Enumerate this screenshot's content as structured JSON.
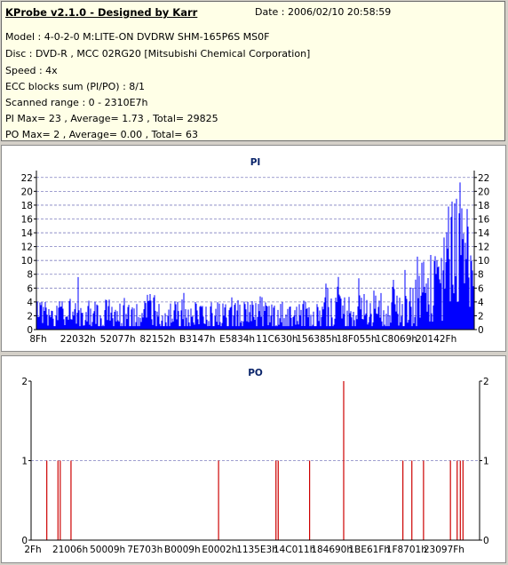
{
  "header": {
    "title": "KProbe v2.1.0 - Designed by Karr",
    "date": "Date : 2006/02/10 20:58:59",
    "lines": [
      "Model : 4-0-2-0 M:LITE-ON DVDRW SHM-165P6S MS0F",
      "Disc : DVD-R , MCC 02RG20   [Mitsubishi Chemical Corporation]",
      "Speed : 4x",
      "ECC blocks sum (PI/PO) : 8/1",
      "Scanned range : 0 - 2310E7h",
      "PI Max= 23 , Average= 1.73 , Total= 29825",
      "PO Max= 2 , Average= 0.00 , Total= 63"
    ]
  },
  "chart_data": [
    {
      "type": "bar",
      "title": "PI",
      "x_tick_labels": [
        "8Fh",
        "22032h",
        "52077h",
        "82152h",
        "B3147h",
        "E5834h",
        "11C630h",
        "156385h",
        "18F055h",
        "1C8069h",
        "20142Fh"
      ],
      "y_ticks": [
        0,
        2,
        4,
        6,
        8,
        10,
        12,
        14,
        16,
        18,
        20,
        22
      ],
      "ylim": [
        0,
        23
      ],
      "grid": true,
      "right_axis": true,
      "segments": [
        {
          "from": 0.0,
          "to": 0.08,
          "base": 2.3,
          "spread": 2.0,
          "spike": 5.2
        },
        {
          "from": 0.08,
          "to": 0.22,
          "base": 2.4,
          "spread": 2.3,
          "spike": 8.0
        },
        {
          "from": 0.22,
          "to": 0.65,
          "base": 2.0,
          "spread": 2.2,
          "spike": 5.3
        },
        {
          "from": 0.65,
          "to": 0.8,
          "base": 2.6,
          "spread": 2.8,
          "spike": 8.0
        },
        {
          "from": 0.8,
          "to": 0.87,
          "base": 3.5,
          "spread": 3.8,
          "spike": 9.0
        },
        {
          "from": 0.87,
          "to": 0.93,
          "base": 6.0,
          "spread": 5.0,
          "spike": 12.0
        },
        {
          "from": 0.93,
          "to": 1.0,
          "base": 11.0,
          "spread": 8.0,
          "spike": 23.0
        }
      ],
      "color": "#0000ff",
      "grid_color": "#8080c0"
    },
    {
      "type": "bar",
      "title": "PO",
      "x_tick_labels": [
        "2Fh",
        "21006h",
        "50009h",
        "7E703h",
        "B0009h",
        "E0002h",
        "1135E3h",
        "14C011h",
        "184690h",
        "1BE61Fh",
        "1F8701h",
        "23097Fh"
      ],
      "y_ticks": [
        0,
        1,
        2
      ],
      "ylim": [
        0,
        2
      ],
      "grid": true,
      "right_axis": true,
      "spikes": [
        {
          "x": 0.035,
          "value": 1
        },
        {
          "x": 0.06,
          "value": 1
        },
        {
          "x": 0.065,
          "value": 1
        },
        {
          "x": 0.089,
          "value": 1
        },
        {
          "x": 0.418,
          "value": 1
        },
        {
          "x": 0.546,
          "value": 1
        },
        {
          "x": 0.551,
          "value": 1
        },
        {
          "x": 0.621,
          "value": 1
        },
        {
          "x": 0.697,
          "value": 2
        },
        {
          "x": 0.829,
          "value": 1
        },
        {
          "x": 0.849,
          "value": 1
        },
        {
          "x": 0.875,
          "value": 1
        },
        {
          "x": 0.935,
          "value": 1
        },
        {
          "x": 0.95,
          "value": 1
        },
        {
          "x": 0.957,
          "value": 1
        },
        {
          "x": 0.963,
          "value": 1
        }
      ],
      "color": "#cc0000",
      "grid_color": "#8080c0"
    }
  ]
}
